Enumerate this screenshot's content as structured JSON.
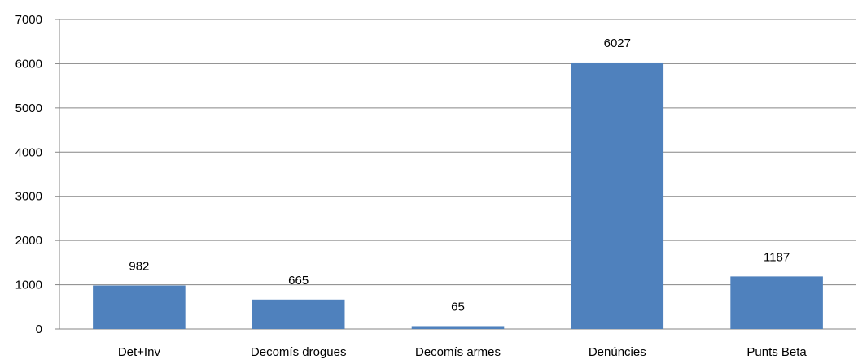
{
  "chart_data": {
    "type": "bar",
    "categories": [
      "Det+Inv",
      "Decomís drogues",
      "Decomís armes",
      "Denúncies",
      "Punts Beta"
    ],
    "values": [
      982,
      665,
      65,
      6027,
      1187
    ],
    "data_labels": [
      "982",
      "665",
      "65",
      "6027",
      "1187"
    ],
    "ylim": [
      0,
      7000
    ],
    "yticks": [
      "0",
      "1000",
      "2000",
      "3000",
      "4000",
      "5000",
      "6000",
      "7000"
    ],
    "title": "",
    "xlabel": "",
    "ylabel": "",
    "grid": true,
    "legend": "none",
    "colors": {
      "bar": "#4F81BD",
      "grid": "#868686"
    }
  }
}
